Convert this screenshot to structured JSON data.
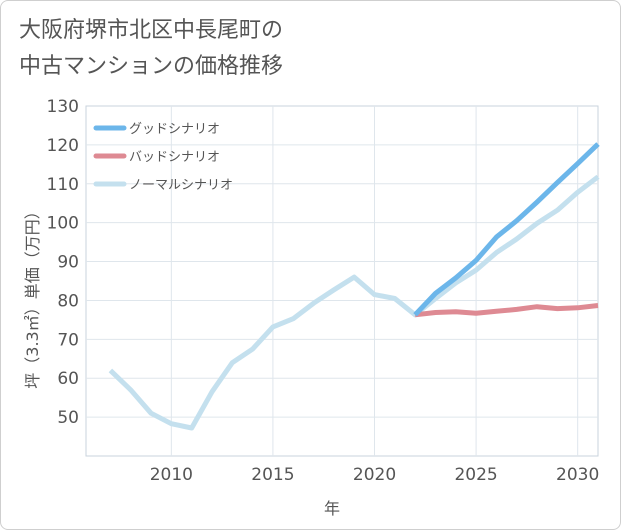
{
  "title_lines": [
    "大阪府堺市北区中長尾町の",
    "中古マンションの価格推移"
  ],
  "chart_data": {
    "type": "line",
    "title": "大阪府堺市北区中長尾町の中古マンションの価格推移",
    "xlabel": "年",
    "ylabel": "坪（3.3㎡）単価（万円）",
    "xlim": [
      2005.8,
      2031
    ],
    "ylim": [
      40,
      130
    ],
    "xticks": [
      2010,
      2015,
      2020,
      2025,
      2030
    ],
    "yticks": [
      50,
      60,
      70,
      80,
      90,
      100,
      110,
      120,
      130
    ],
    "grid": true,
    "legend_position": "top-left",
    "series": [
      {
        "name": "ノーマルシナリオ",
        "color": "#c4e0ee",
        "x": [
          2007,
          2008,
          2009,
          2010,
          2011,
          2012,
          2013,
          2014,
          2015,
          2016,
          2017,
          2018,
          2019,
          2020,
          2021,
          2022,
          2023,
          2024,
          2025,
          2026,
          2027,
          2028,
          2029,
          2030,
          2031
        ],
        "values": [
          62,
          57,
          51,
          48.3,
          47.2,
          56.5,
          64,
          67.5,
          73.2,
          75.3,
          79.3,
          82.7,
          86,
          81.5,
          80.5,
          76.3,
          80.5,
          84.5,
          87.8,
          92.3,
          95.8,
          99.8,
          103.2,
          107.8,
          111.8
        ]
      },
      {
        "name": "グッドシナリオ",
        "color": "#6cb6ea",
        "x": [
          2022,
          2023,
          2024,
          2025,
          2026,
          2027,
          2028,
          2029,
          2030,
          2031
        ],
        "values": [
          76.3,
          81.8,
          85.8,
          90.3,
          96.3,
          100.5,
          105.3,
          110.3,
          115.2,
          120.2
        ]
      },
      {
        "name": "バッドシナリオ",
        "color": "#de8a93",
        "x": [
          2022,
          2023,
          2024,
          2025,
          2026,
          2027,
          2028,
          2029,
          2030,
          2031
        ],
        "values": [
          76.3,
          76.9,
          77.1,
          76.7,
          77.2,
          77.7,
          78.4,
          77.9,
          78.1,
          78.7
        ]
      }
    ],
    "legend_order": [
      "グッドシナリオ",
      "バッドシナリオ",
      "ノーマルシナリオ"
    ]
  }
}
